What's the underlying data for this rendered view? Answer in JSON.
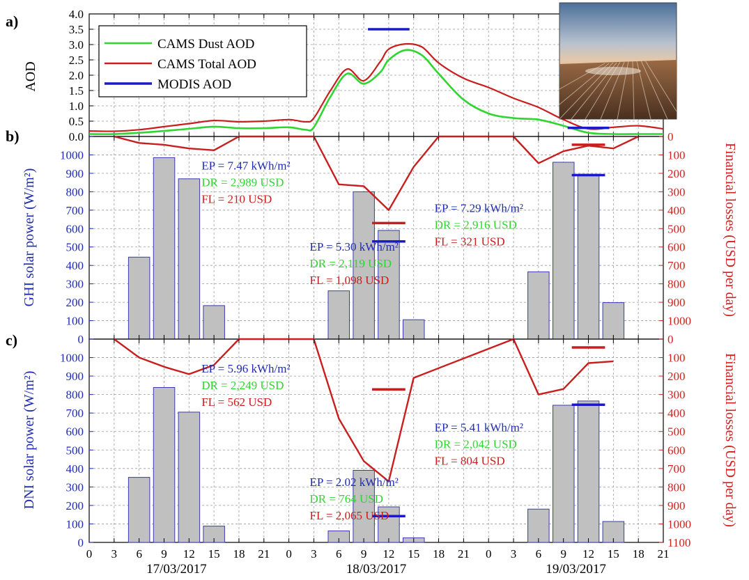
{
  "colors": {
    "left_axis": "#1f2bb0",
    "right_axis": "#d21f1f",
    "dust": "#2fd62f",
    "total": "#c81e1e",
    "modis": "#1a1ac8",
    "bars_fill": "#c0c0c0",
    "bars_stroke": "#3a3ab0",
    "ep_text": "#1f2bb0",
    "dr_text": "#2fd62f",
    "fl_text": "#c81e1e"
  },
  "chart_data": [
    {
      "panel_label": "a)",
      "type": "line",
      "ylabel": "AOD",
      "ylim": [
        0,
        4.0
      ],
      "yticks": [
        "0.0",
        "0.5",
        "1.0",
        "1.5",
        "2.0",
        "2.5",
        "3.0",
        "3.5",
        "4.0"
      ],
      "xlim": [
        0,
        69
      ],
      "legend": {
        "placement": "top-left",
        "entries": [
          "CAMS Dust AOD",
          "CAMS Total AOD",
          "MODIS AOD"
        ]
      },
      "series": [
        {
          "name": "CAMS Dust AOD",
          "x": [
            0,
            3,
            6,
            9,
            12,
            15,
            18,
            21,
            24,
            26,
            27,
            29,
            31,
            33,
            35,
            36,
            38,
            40,
            42,
            45,
            48,
            51,
            54,
            57,
            60,
            63,
            66,
            69
          ],
          "y": [
            0.08,
            0.08,
            0.12,
            0.18,
            0.25,
            0.32,
            0.27,
            0.27,
            0.3,
            0.22,
            0.3,
            1.3,
            2.05,
            1.72,
            2.1,
            2.5,
            2.82,
            2.65,
            2.05,
            1.2,
            0.75,
            0.6,
            0.55,
            0.35,
            0.12,
            0.08,
            0.08,
            0.08
          ]
        },
        {
          "name": "CAMS Total AOD",
          "x": [
            0,
            3,
            6,
            9,
            12,
            15,
            18,
            21,
            24,
            26,
            27,
            29,
            31,
            33,
            35,
            36,
            38,
            40,
            42,
            45,
            48,
            51,
            54,
            57,
            60,
            63,
            66,
            69
          ],
          "y": [
            0.18,
            0.17,
            0.22,
            0.32,
            0.42,
            0.52,
            0.48,
            0.5,
            0.55,
            0.48,
            0.6,
            1.5,
            2.2,
            1.82,
            2.45,
            2.85,
            3.02,
            2.92,
            2.4,
            1.9,
            1.6,
            1.25,
            0.95,
            0.55,
            0.25,
            0.3,
            0.35,
            0.25
          ]
        },
        {
          "name": "MODIS AOD",
          "segments": [
            {
              "x0": 33.5,
              "x1": 38.5,
              "y": 3.5
            },
            {
              "x0": 57.5,
              "x1": 62.5,
              "y": 0.28
            }
          ]
        }
      ]
    },
    {
      "panel_label": "b)",
      "type": "bar",
      "ylabel": "GHI solar power (W/m²)",
      "ylabel_right": "Financial losses (USD per day)",
      "ylim": [
        0,
        1100
      ],
      "yticks": [
        "0",
        "100",
        "200",
        "300",
        "400",
        "500",
        "600",
        "700",
        "800",
        "900",
        "1000"
      ],
      "yticks_right": [
        "0",
        "100",
        "200",
        "300",
        "400",
        "500",
        "600",
        "700",
        "800",
        "900",
        "1000"
      ],
      "right_ylim": [
        0,
        1100
      ],
      "xlim": [
        0,
        69
      ],
      "bars": {
        "x": [
          6,
          9,
          12,
          15,
          30,
          33,
          36,
          39,
          54,
          57,
          60,
          63
        ],
        "values": [
          445,
          985,
          870,
          182,
          262,
          800,
          590,
          105,
          365,
          960,
          895,
          198
        ]
      },
      "blue_segments": [
        {
          "x0": 34,
          "x1": 38,
          "y": 530
        },
        {
          "x0": 58,
          "x1": 62,
          "y": 890
        }
      ],
      "red_segments": [
        {
          "x0": 34,
          "x1": 38,
          "y": 470
        },
        {
          "x0": 58,
          "x1": 62,
          "y": 45
        }
      ],
      "loss_line": {
        "x": [
          3,
          6,
          9,
          12,
          15,
          18,
          27,
          30,
          33,
          36,
          39,
          42,
          51,
          54,
          57,
          60,
          63,
          66
        ],
        "y": [
          0,
          35,
          45,
          65,
          75,
          0,
          0,
          260,
          270,
          400,
          165,
          0,
          0,
          145,
          80,
          50,
          65,
          0
        ]
      },
      "annotations": [
        {
          "lines": [
            "EP = 7.47 kWh/m²",
            "DR = 2,989 USD",
            "FL =  210 USD"
          ],
          "x": 13.5,
          "y": 920
        },
        {
          "lines": [
            "EP = 5.30 kWh/m²",
            "DR = 2,119 USD",
            "FL =  1,098 USD"
          ],
          "x": 26.5,
          "y": 480
        },
        {
          "lines": [
            "EP = 7.29 kWh/m²",
            "DR = 2,916 USD",
            "FL =  321 USD"
          ],
          "x": 41.5,
          "y": 690
        }
      ]
    },
    {
      "panel_label": "c)",
      "type": "bar",
      "ylabel": "DNI solar power (W/m²)",
      "ylabel_right": "Financial losses (USD per day)",
      "ylim": [
        0,
        1100
      ],
      "yticks": [
        "0",
        "100",
        "200",
        "300",
        "400",
        "500",
        "600",
        "700",
        "800",
        "900",
        "1000"
      ],
      "yticks_right": [
        "0",
        "100",
        "200",
        "300",
        "400",
        "500",
        "600",
        "700",
        "800",
        "900",
        "1000",
        "1100"
      ],
      "right_ylim": [
        0,
        1100
      ],
      "xlim": [
        0,
        69
      ],
      "x_ticks": [
        "0",
        "3",
        "6",
        "9",
        "12",
        "15",
        "18",
        "21",
        "0",
        "3",
        "6",
        "9",
        "12",
        "15",
        "18",
        "21",
        "0",
        "3",
        "6",
        "9",
        "12",
        "15",
        "18",
        "21"
      ],
      "date_labels": [
        "17/03/2017",
        "18/03/2017",
        "19/03/2017"
      ],
      "bars": {
        "x": [
          6,
          9,
          12,
          15,
          30,
          33,
          36,
          39,
          54,
          57,
          60,
          63
        ],
        "values": [
          352,
          838,
          705,
          88,
          62,
          390,
          192,
          25,
          180,
          742,
          765,
          113
        ]
      },
      "blue_segments": [
        {
          "x0": 34,
          "x1": 38,
          "y": 142
        },
        {
          "x0": 58,
          "x1": 62,
          "y": 745
        }
      ],
      "red_segments": [
        {
          "x0": 34,
          "x1": 38,
          "y": 272
        },
        {
          "x0": 58,
          "x1": 62,
          "y": 45
        }
      ],
      "loss_line": {
        "x": [
          3,
          6,
          9,
          12,
          15,
          18,
          27,
          30,
          33,
          36,
          39,
          51,
          54,
          57,
          60,
          63
        ],
        "y": [
          0,
          100,
          150,
          190,
          140,
          0,
          0,
          430,
          660,
          770,
          210,
          0,
          300,
          270,
          130,
          120
        ]
      },
      "annotations": [
        {
          "lines": [
            "EP = 5.96 kWh/m²",
            "DR = 2,249 USD",
            "FL =  562 USD"
          ],
          "x": 13.5,
          "y": 920
        },
        {
          "lines": [
            "EP = 2.02 kWh/m²",
            "DR = 764 USD",
            "FL =  2,065 USD"
          ],
          "x": 26.5,
          "y": 305
        },
        {
          "lines": [
            "EP = 5.41 kWh/m²",
            "DR = 2,042 USD",
            "FL =  804 USD"
          ],
          "x": 41.5,
          "y": 600
        }
      ]
    }
  ]
}
